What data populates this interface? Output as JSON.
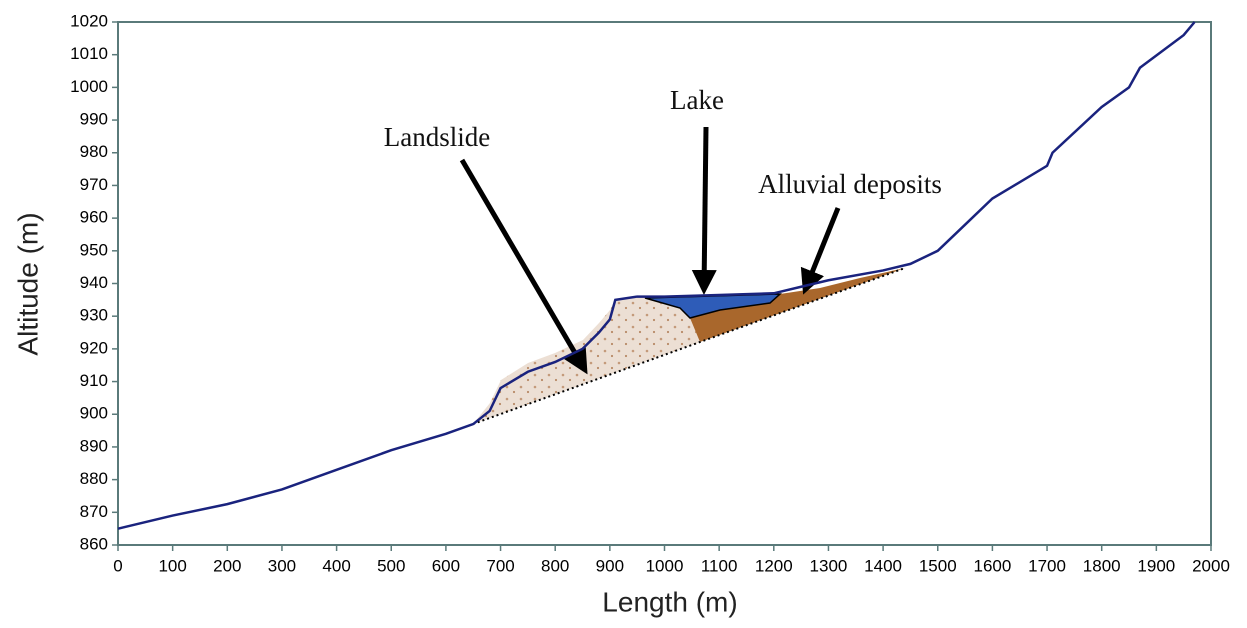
{
  "chart_data": {
    "type": "line",
    "xlabel": "Length (m)",
    "ylabel": "Altitude (m)",
    "x": [
      0,
      100,
      200,
      300,
      400,
      500,
      600,
      650,
      680,
      700,
      750,
      800,
      850,
      880,
      900,
      910,
      950,
      1000,
      1100,
      1200,
      1250,
      1300,
      1400,
      1450,
      1500,
      1550,
      1600,
      1700,
      1710,
      1800,
      1850,
      1870,
      1950,
      1970
    ],
    "series": [
      {
        "color": "#1a237e",
        "values": [
          865,
          869,
          872.5,
          877,
          883,
          889,
          894,
          897,
          901,
          908,
          913,
          916,
          920,
          925,
          929,
          935,
          936,
          936,
          936.5,
          937,
          939,
          941,
          944,
          946,
          950,
          958,
          966,
          976,
          980,
          994,
          1000,
          1006,
          1016,
          1020
        ]
      }
    ],
    "xlim": [
      0,
      2000
    ],
    "ylim": [
      860,
      1020
    ],
    "xticks": [
      0,
      100,
      200,
      300,
      400,
      500,
      600,
      700,
      800,
      900,
      1000,
      1100,
      1200,
      1300,
      1400,
      1500,
      1600,
      1700,
      1800,
      1900,
      2000
    ],
    "yticks": [
      860,
      870,
      880,
      890,
      900,
      910,
      920,
      930,
      940,
      950,
      960,
      970,
      980,
      990,
      1000,
      1010,
      1020
    ],
    "annotations": [
      "Landslide",
      "Lake",
      "Alluvial deposits"
    ]
  }
}
